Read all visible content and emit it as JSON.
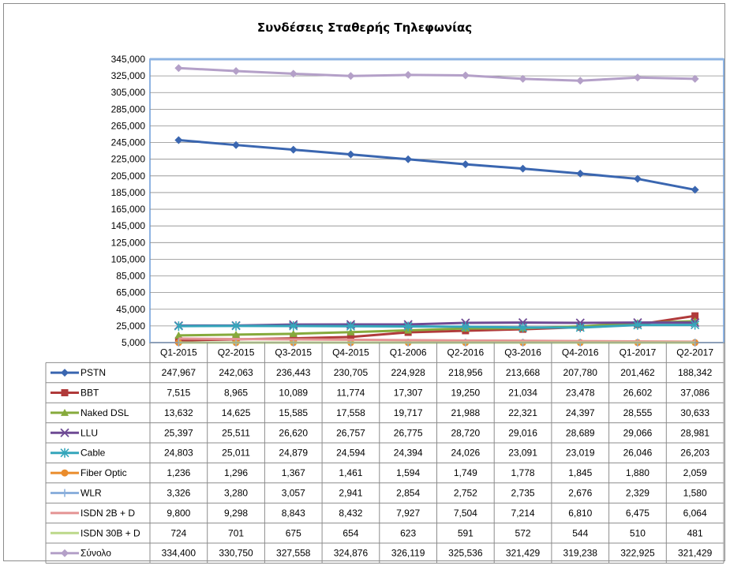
{
  "chart_data": {
    "type": "line",
    "title": "Συνδέσεις Σταθερής Τηλεφωνίας",
    "xlabel": "",
    "ylabel": "",
    "ylim": [
      5000,
      345000
    ],
    "y_ticks": [
      "5,000",
      "25,000",
      "45,000",
      "65,000",
      "85,000",
      "105,000",
      "125,000",
      "145,000",
      "165,000",
      "185,000",
      "205,000",
      "225,000",
      "245,000",
      "265,000",
      "285,000",
      "305,000",
      "325,000",
      "345,000"
    ],
    "grid": true,
    "legend": "data-table",
    "categories": [
      "Q1-2015",
      "Q2-2015",
      "Q3-2015",
      "Q4-2015",
      "Q1-2006",
      "Q2-2016",
      "Q3-2016",
      "Q4-2016",
      "Q1-2017",
      "Q2-2017"
    ],
    "series": [
      {
        "name": "PSTN",
        "color": "#3a66b0",
        "marker": "diamond",
        "values": [
          247967,
          242063,
          236443,
          230705,
          224928,
          218956,
          213668,
          207780,
          201462,
          188342
        ],
        "labels": [
          "247,967",
          "242,063",
          "236,443",
          "230,705",
          "224,928",
          "218,956",
          "213,668",
          "207,780",
          "201,462",
          "188,342"
        ]
      },
      {
        "name": "BBT",
        "color": "#b03a3a",
        "marker": "square",
        "values": [
          7515,
          8965,
          10089,
          11774,
          17307,
          19250,
          21034,
          23478,
          26602,
          37086
        ],
        "labels": [
          "7,515",
          "8,965",
          "10,089",
          "11,774",
          "17,307",
          "19,250",
          "21,034",
          "23,478",
          "26,602",
          "37,086"
        ]
      },
      {
        "name": "Naked DSL",
        "color": "#86aa3c",
        "marker": "triangle",
        "values": [
          13632,
          14625,
          15585,
          17558,
          19717,
          21988,
          22321,
          24397,
          28555,
          30633
        ],
        "labels": [
          "13,632",
          "14,625",
          "15,585",
          "17,558",
          "19,717",
          "21,988",
          "22,321",
          "24,397",
          "28,555",
          "30,633"
        ]
      },
      {
        "name": "LLU",
        "color": "#6e4a94",
        "marker": "x",
        "values": [
          25397,
          25511,
          26620,
          26757,
          26775,
          28720,
          29016,
          28689,
          29066,
          28981
        ],
        "labels": [
          "25,397",
          "25,511",
          "26,620",
          "26,757",
          "26,775",
          "28,720",
          "29,016",
          "28,689",
          "29,066",
          "28,981"
        ]
      },
      {
        "name": "Cable",
        "color": "#35a6bb",
        "marker": "star",
        "values": [
          24803,
          25011,
          24879,
          24594,
          24394,
          24026,
          23091,
          23019,
          26046,
          26203
        ],
        "labels": [
          "24,803",
          "25,011",
          "24,879",
          "24,594",
          "24,394",
          "24,026",
          "23,091",
          "23,019",
          "26,046",
          "26,203"
        ]
      },
      {
        "name": "Fiber Optic",
        "color": "#ea8c2c",
        "marker": "circle",
        "values": [
          1236,
          1296,
          1367,
          1461,
          1594,
          1749,
          1778,
          1845,
          1880,
          2059
        ],
        "labels": [
          "1,236",
          "1,296",
          "1,367",
          "1,461",
          "1,594",
          "1,749",
          "1,778",
          "1,845",
          "1,880",
          "2,059"
        ]
      },
      {
        "name": "WLR",
        "color": "#8cb0dc",
        "marker": "plus",
        "values": [
          3326,
          3280,
          3057,
          2941,
          2854,
          2752,
          2735,
          2676,
          2329,
          1580
        ],
        "labels": [
          "3,326",
          "3,280",
          "3,057",
          "2,941",
          "2,854",
          "2,752",
          "2,735",
          "2,676",
          "2,329",
          "1,580"
        ]
      },
      {
        "name": "ISDN 2B + D",
        "color": "#e49494",
        "marker": "dash",
        "values": [
          9800,
          9298,
          8843,
          8432,
          7927,
          7504,
          7214,
          6810,
          6475,
          6064
        ],
        "labels": [
          "9,800",
          "9,298",
          "8,843",
          "8,432",
          "7,927",
          "7,504",
          "7,214",
          "6,810",
          "6,475",
          "6,064"
        ]
      },
      {
        "name": "ISDN 30B + D",
        "color": "#bcd88a",
        "marker": "dash",
        "values": [
          724,
          701,
          675,
          654,
          623,
          591,
          572,
          544,
          510,
          481
        ],
        "labels": [
          "724",
          "701",
          "675",
          "654",
          "623",
          "591",
          "572",
          "544",
          "510",
          "481"
        ]
      },
      {
        "name": "Σύνολο",
        "color": "#b4a0c8",
        "marker": "diamond",
        "values": [
          334400,
          330750,
          327558,
          324876,
          326119,
          325536,
          321429,
          319238,
          322925,
          321429
        ],
        "labels": [
          "334,400",
          "330,750",
          "327,558",
          "324,876",
          "326,119",
          "325,536",
          "321,429",
          "319,238",
          "322,925",
          "321,429"
        ]
      }
    ]
  }
}
